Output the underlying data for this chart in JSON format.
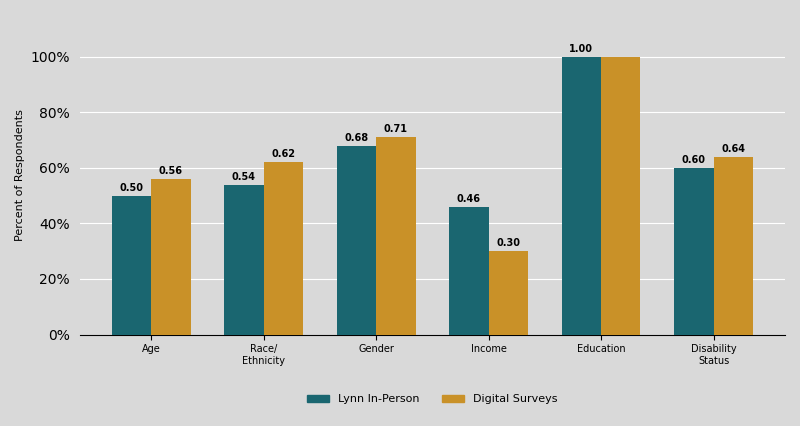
{
  "categories": [
    "Age",
    "Race/\nEthnicity",
    "Gender",
    "Income",
    "Education",
    "Disability\nStatus"
  ],
  "lynn_values": [
    0.5,
    0.54,
    0.68,
    0.46,
    1.0,
    0.6
  ],
  "digital_values": [
    0.56,
    0.62,
    0.71,
    0.3,
    1.0,
    0.64
  ],
  "lynn_color": "#1a6670",
  "digital_color": "#c99128",
  "background_color": "#d9d9d9",
  "bar_width": 0.35,
  "ylim": [
    0,
    1.15
  ],
  "ylabel": "Percent of Respondents",
  "title": "",
  "lynn_label": "Lynn In-Person",
  "digital_label": "Digital Surveys",
  "value_fontsize": 7,
  "label_fontsize": 8,
  "tick_fontsize": 7,
  "legend_fontsize": 8
}
